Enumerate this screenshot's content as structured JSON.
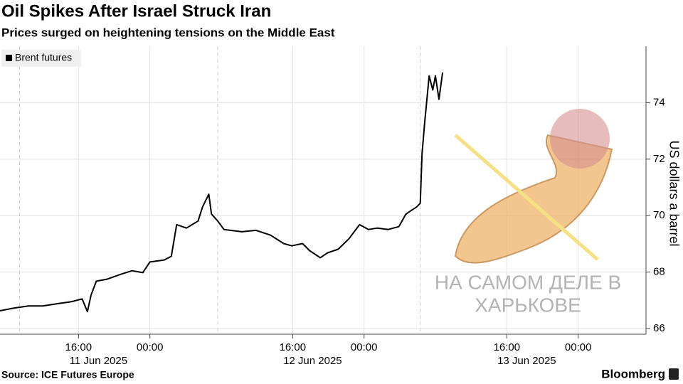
{
  "chart_data": {
    "type": "line",
    "title": "Oil Spikes After Israel Struck Iran",
    "subtitle": "Prices surged on heightening tensions on the Middle East",
    "y_label": "US dollars a barrel",
    "source": "Source: ICE Futures Europe",
    "brand": "Bloomberg",
    "watermark": [
      "НА САМОМ ДЕЛЕ В",
      "ХАРЬКОВЕ"
    ],
    "legend": "top-left",
    "grid": true,
    "x": [
      7.2,
      8.8,
      10.4,
      12.0,
      13.6,
      15.2,
      16.4,
      17.0,
      17.4,
      18.0,
      19.2,
      20.8,
      22.0,
      23.2,
      24.0,
      25.6,
      26.4,
      27.0,
      28.1,
      29.4,
      29.9,
      30.6,
      30.9,
      31.6,
      32.3,
      34.3,
      35.9,
      37.5,
      39.0,
      39.9,
      41.1,
      41.9,
      43.1,
      43.9,
      45.1,
      46.3,
      47.5,
      48.5,
      49.5,
      50.7,
      51.9,
      52.7,
      53.9,
      54.3,
      54.5,
      54.8,
      55.3,
      55.7,
      56.0,
      56.4,
      56.8
    ],
    "series": [
      {
        "name": "Brent futures",
        "color": "#000000",
        "values": [
          66.63,
          66.73,
          66.8,
          66.8,
          66.88,
          66.95,
          67.05,
          66.6,
          67.18,
          67.68,
          67.75,
          67.93,
          68.05,
          67.98,
          68.36,
          68.43,
          68.56,
          69.68,
          69.56,
          69.81,
          70.31,
          70.76,
          70.06,
          69.81,
          69.51,
          69.43,
          69.48,
          69.31,
          69.01,
          68.93,
          69.01,
          68.76,
          68.51,
          68.68,
          68.81,
          69.18,
          69.68,
          69.51,
          69.56,
          69.51,
          69.61,
          70.06,
          70.31,
          70.44,
          72.19,
          73.32,
          74.95,
          74.45,
          74.95,
          74.12,
          75.07
        ]
      }
    ],
    "xlim": [
      7.2,
      79.6
    ],
    "xticks": [
      {
        "value": 16,
        "label": "16:00"
      },
      {
        "value": 24,
        "label": "00:00"
      },
      {
        "value": 40,
        "label": "16:00"
      },
      {
        "value": 48,
        "label": "00:00"
      },
      {
        "value": 64,
        "label": "16:00"
      },
      {
        "value": 72,
        "label": "00:00"
      }
    ],
    "date_labels": [
      {
        "value": 16,
        "label": "11 Jun 2025"
      },
      {
        "value": 40,
        "label": "12 Jun 2025"
      },
      {
        "value": 64,
        "label": "13 Jun 2025"
      }
    ],
    "session_breaks": [
      9.4,
      31.6,
      54.3
    ],
    "ylim": [
      65.8,
      76
    ],
    "yticks": [
      66,
      68,
      70,
      72,
      74
    ]
  }
}
